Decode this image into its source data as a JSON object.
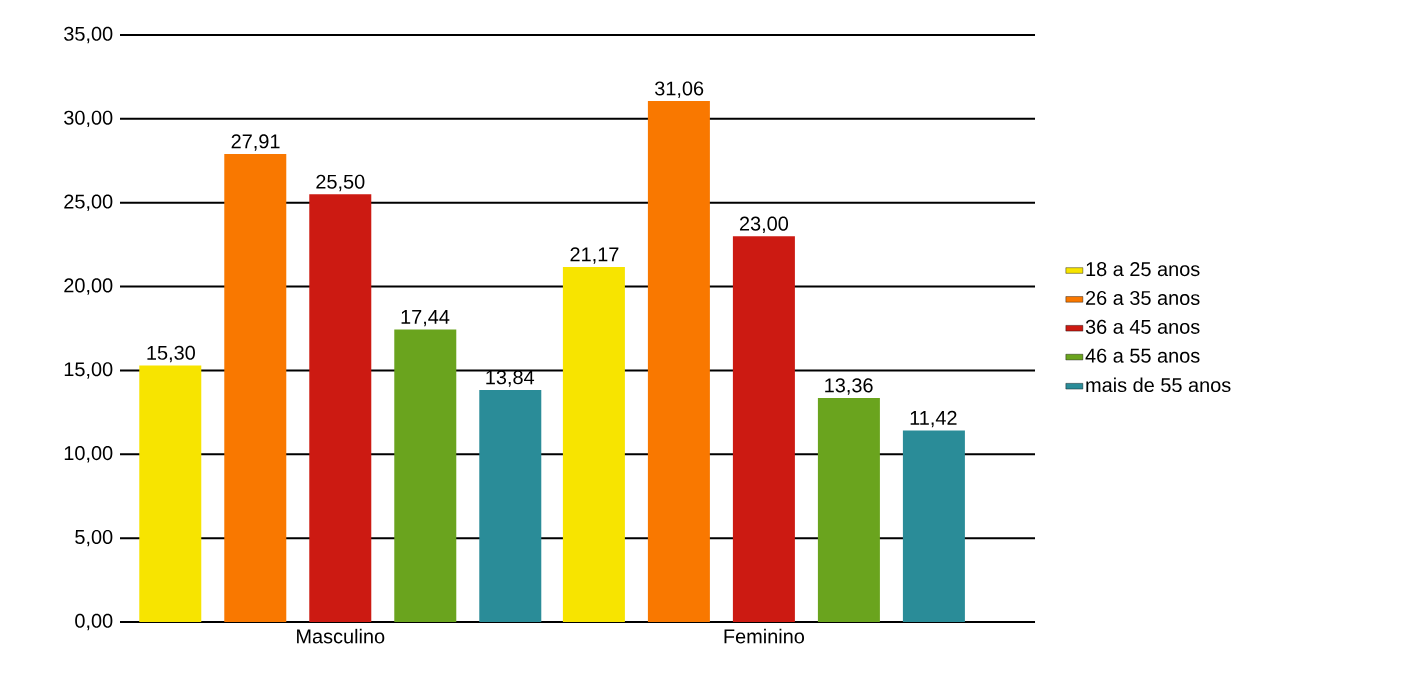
{
  "chart_data": {
    "type": "bar",
    "categories": [
      "Masculino",
      "Feminino"
    ],
    "series": [
      {
        "name": "18 a 25 anos",
        "color": "#f7e400",
        "values": [
          15.3,
          21.17
        ],
        "value_labels": [
          "15,30",
          "21,17"
        ]
      },
      {
        "name": "26 a 35 anos",
        "color": "#f97800",
        "values": [
          27.91,
          31.06
        ],
        "value_labels": [
          "27,91",
          "31,06"
        ]
      },
      {
        "name": "36 a 45 anos",
        "color": "#cc1a12",
        "values": [
          25.5,
          23.0
        ],
        "value_labels": [
          "25,50",
          "23,00"
        ]
      },
      {
        "name": "46 a 55 anos",
        "color": "#6aa41e",
        "values": [
          17.44,
          13.36
        ],
        "value_labels": [
          "17,44",
          "13,36"
        ]
      },
      {
        "name": "mais de 55 anos",
        "color": "#2a8c98",
        "values": [
          13.84,
          11.42
        ],
        "value_labels": [
          "13,84",
          "11,42"
        ]
      }
    ],
    "ylim": [
      0,
      35
    ],
    "yticks": [
      {
        "value": 0,
        "label": "0,00"
      },
      {
        "value": 5,
        "label": "5,00"
      },
      {
        "value": 10,
        "label": "10,00"
      },
      {
        "value": 15,
        "label": "15,00"
      },
      {
        "value": 20,
        "label": "20,00"
      },
      {
        "value": 25,
        "label": "25,00"
      },
      {
        "value": 30,
        "label": "30,00"
      },
      {
        "value": 35,
        "label": "35,00"
      }
    ],
    "grid": "y",
    "legend": "right"
  }
}
